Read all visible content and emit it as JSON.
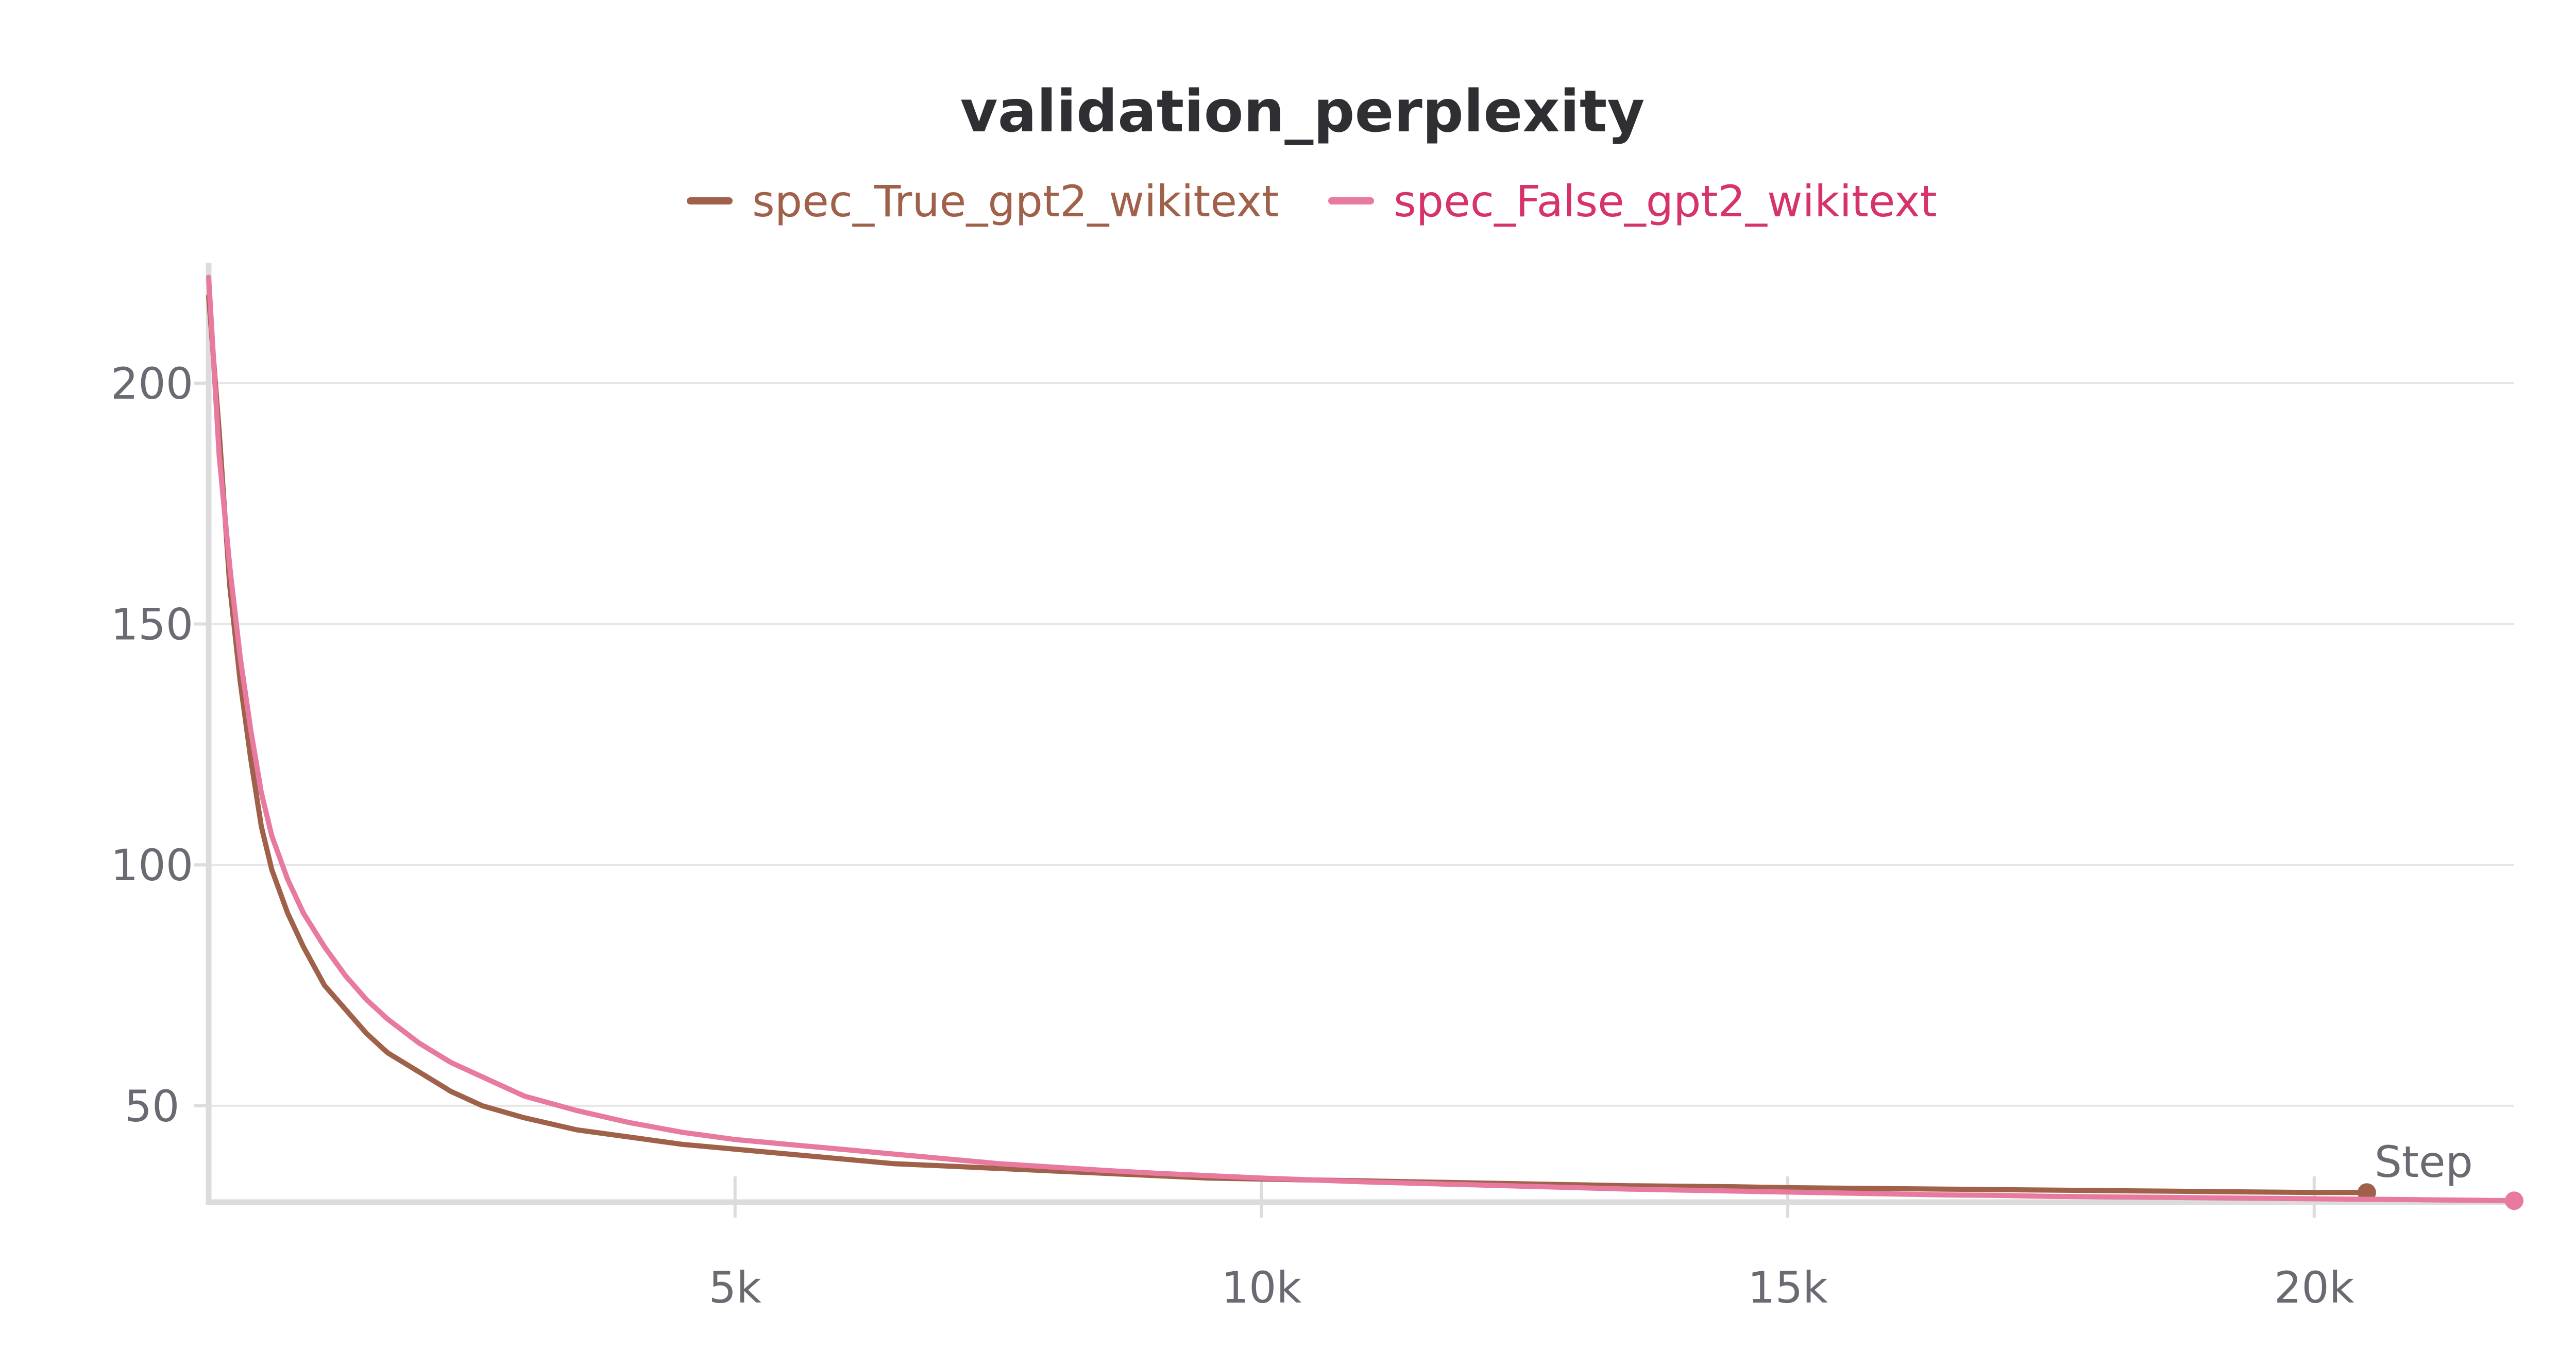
{
  "chart_data": {
    "type": "line",
    "title": "validation_perplexity",
    "xlabel": "Step",
    "ylabel": "",
    "xlim": [
      0,
      21900
    ],
    "ylim": [
      30,
      225
    ],
    "x_ticks": [
      5000,
      10000,
      15000,
      20000
    ],
    "x_tick_labels": [
      "5k",
      "10k",
      "15k",
      "20k"
    ],
    "y_ticks": [
      50,
      100,
      150,
      200
    ],
    "y_tick_labels": [
      "50",
      "100",
      "150",
      "200"
    ],
    "grid": "horizontal",
    "legend_position": "top-center",
    "series": [
      {
        "name": "spec_True_gpt2_wikitext",
        "color": "#a0614a",
        "label_color": "#a0614a",
        "x": [
          0,
          100,
          200,
          300,
          400,
          500,
          600,
          750,
          900,
          1100,
          1300,
          1500,
          1700,
          2000,
          2300,
          2600,
          3000,
          3500,
          4000,
          4500,
          5000,
          5500,
          6000,
          6500,
          7000,
          7500,
          8000,
          8500,
          9000,
          9500,
          10000,
          10500,
          11000,
          11500,
          12000,
          12500,
          13000,
          13500,
          14000,
          14500,
          15000,
          15500,
          16000,
          16500,
          17000,
          17500,
          18000,
          18500,
          19000,
          19500,
          20000,
          20500
        ],
        "y": [
          218,
          190,
          158,
          138,
          122,
          108,
          99,
          90,
          83,
          75,
          70,
          65,
          61,
          57,
          53,
          50,
          47.5,
          45,
          43.5,
          42,
          41,
          40,
          39,
          38,
          37.5,
          37,
          36.5,
          36,
          35.5,
          35,
          34.8,
          34.6,
          34.4,
          34.2,
          34,
          33.8,
          33.6,
          33.4,
          33.3,
          33.2,
          33,
          32.9,
          32.8,
          32.7,
          32.6,
          32.5,
          32.4,
          32.3,
          32.2,
          32.1,
          32,
          32
        ]
      },
      {
        "name": "spec_False_gpt2_wikitext",
        "color": "#e8799f",
        "label_color": "#d6336c",
        "x": [
          0,
          100,
          200,
          300,
          400,
          500,
          600,
          750,
          900,
          1100,
          1300,
          1500,
          1700,
          2000,
          2300,
          2600,
          3000,
          3500,
          4000,
          4500,
          5000,
          5500,
          6000,
          6500,
          7000,
          7500,
          8000,
          8500,
          9000,
          9500,
          10000,
          10500,
          11000,
          11500,
          12000,
          12500,
          13000,
          13500,
          14000,
          14500,
          15000,
          15500,
          16000,
          16500,
          17000,
          17500,
          18000,
          18500,
          19000,
          19500,
          20000,
          20500,
          21000,
          21500,
          21900
        ],
        "y": [
          222,
          185,
          162,
          143,
          128,
          115,
          106,
          97,
          90,
          83,
          77,
          72,
          68,
          63,
          59,
          56,
          52,
          49,
          46.5,
          44.5,
          43,
          42,
          41,
          40,
          39,
          38,
          37.3,
          36.6,
          36,
          35.5,
          35,
          34.6,
          34.2,
          33.9,
          33.6,
          33.3,
          33,
          32.7,
          32.5,
          32.3,
          32.1,
          31.9,
          31.7,
          31.5,
          31.4,
          31.2,
          31.1,
          31,
          30.9,
          30.8,
          30.7,
          30.6,
          30.5,
          30.4,
          30.3
        ]
      }
    ]
  }
}
